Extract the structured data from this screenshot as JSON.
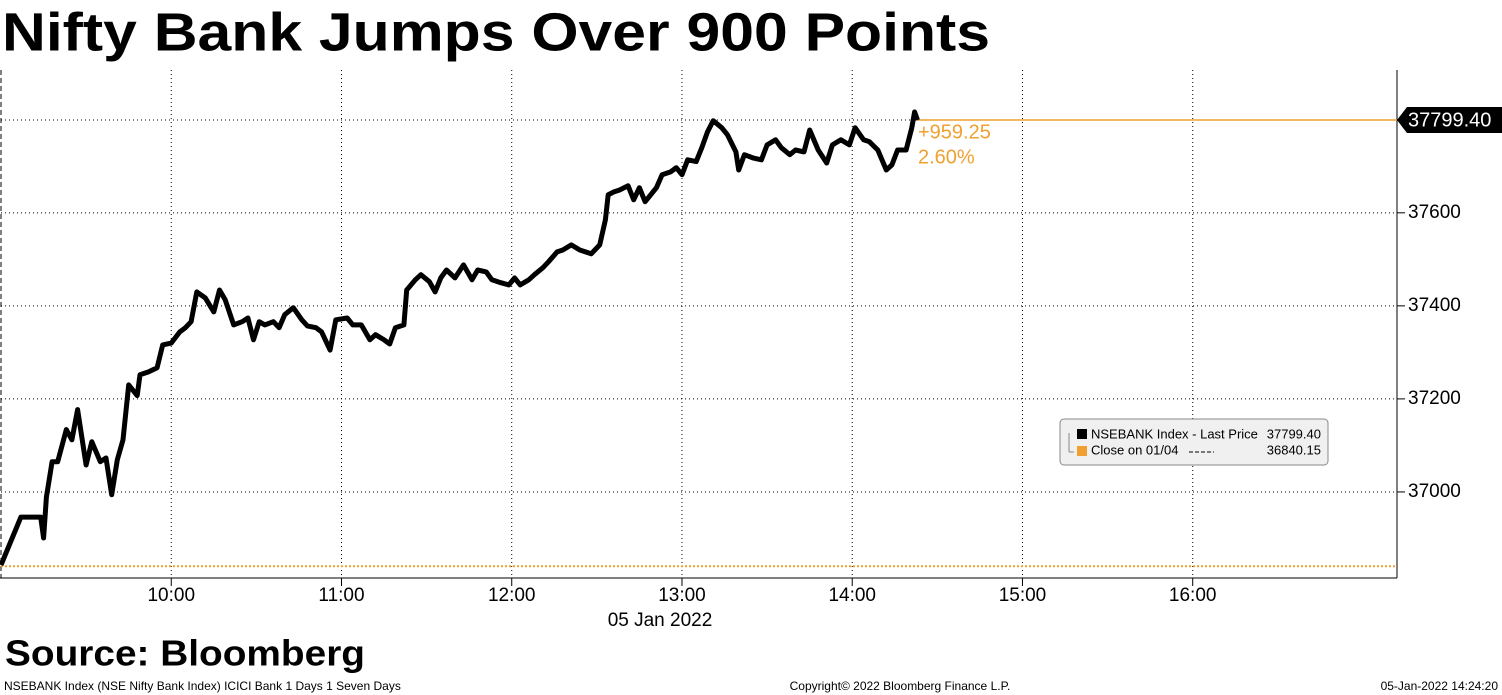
{
  "chart_data": {
    "type": "line",
    "title": "Nifty Bank Jumps Over 900 Points",
    "source": "Source: Bloomberg",
    "x_label": "05 Jan 2022",
    "footer_left": "NSEBANK Index (NSE Nifty Bank Index) ICICI Bank 1 Days 1 Seven Days",
    "footer_center": "Copyright© 2022 Bloomberg Finance L.P.",
    "footer_right": "05-Jan-2022 14:24:20",
    "x": [
      "09:00",
      "09:07",
      "09:14",
      "09:15",
      "09:16",
      "09:18",
      "09:20",
      "09:23",
      "09:25",
      "09:27",
      "09:30",
      "09:32",
      "09:35",
      "09:37",
      "09:39",
      "09:41",
      "09:43",
      "09:45",
      "09:48",
      "09:49",
      "09:52",
      "09:55",
      "09:57",
      "10:00",
      "10:03",
      "10:05",
      "10:07",
      "10:09",
      "10:12",
      "10:15",
      "10:17",
      "10:19",
      "10:22",
      "10:25",
      "10:27",
      "10:29",
      "10:31",
      "10:33",
      "10:36",
      "10:38",
      "10:40",
      "10:43",
      "10:46",
      "10:48",
      "10:51",
      "10:53",
      "10:56",
      "10:58",
      "11:02",
      "11:04",
      "11:07",
      "11:10",
      "11:12",
      "11:15",
      "11:17",
      "11:19",
      "11:22",
      "11:23",
      "11:26",
      "11:28",
      "11:31",
      "11:33",
      "11:35",
      "11:37",
      "11:40",
      "11:43",
      "11:46",
      "11:48",
      "11:51",
      "11:53",
      "11:56",
      "11:59",
      "12:01",
      "12:03",
      "12:06",
      "12:08",
      "12:11",
      "12:13",
      "12:16",
      "12:18",
      "12:21",
      "12:24",
      "12:26",
      "12:28",
      "12:31",
      "12:33",
      "12:34",
      "12:36",
      "12:38",
      "12:41",
      "12:43",
      "12:45",
      "12:47",
      "12:49",
      "12:51",
      "12:53",
      "12:56",
      "12:58",
      "13:00",
      "13:02",
      "13:05",
      "13:07",
      "13:09",
      "13:11",
      "13:14",
      "13:16",
      "13:19",
      "13:20",
      "13:22",
      "13:25",
      "13:28",
      "13:30",
      "13:33",
      "13:35",
      "13:38",
      "13:40",
      "13:43",
      "13:45",
      "13:48",
      "13:51",
      "13:53",
      "13:56",
      "13:59",
      "14:01",
      "14:04",
      "14:06",
      "14:09",
      "14:12",
      "14:14",
      "14:16",
      "14:19",
      "14:21",
      "14:22",
      "14:23"
    ],
    "series": [
      {
        "name": "NSEBANK Index - Last Price",
        "color": "#000000",
        "values": [
          36843,
          36946,
          36946,
          36901,
          36989,
          37065,
          37065,
          37134,
          37112,
          37177,
          37058,
          37108,
          37065,
          37073,
          36994,
          37069,
          37112,
          37230,
          37207,
          37252,
          37258,
          37267,
          37316,
          37320,
          37344,
          37353,
          37366,
          37430,
          37417,
          37387,
          37434,
          37413,
          37359,
          37366,
          37374,
          37327,
          37366,
          37359,
          37366,
          37353,
          37381,
          37396,
          37370,
          37357,
          37353,
          37344,
          37305,
          37370,
          37374,
          37359,
          37359,
          37327,
          37338,
          37327,
          37318,
          37353,
          37359,
          37434,
          37456,
          37467,
          37452,
          37430,
          37460,
          37477,
          37460,
          37488,
          37456,
          37477,
          37473,
          37456,
          37450,
          37445,
          37460,
          37445,
          37456,
          37467,
          37482,
          37495,
          37516,
          37520,
          37531,
          37520,
          37516,
          37512,
          37531,
          37585,
          37639,
          37645,
          37649,
          37658,
          37628,
          37654,
          37624,
          37639,
          37654,
          37682,
          37688,
          37697,
          37682,
          37714,
          37710,
          37740,
          37774,
          37798,
          37783,
          37768,
          37731,
          37692,
          37725,
          37718,
          37714,
          37746,
          37757,
          37740,
          37725,
          37735,
          37731,
          37778,
          37735,
          37707,
          37746,
          37757,
          37746,
          37783,
          37757,
          37753,
          37735,
          37692,
          37703,
          37735,
          37735,
          37783,
          37817,
          37799.4
        ]
      }
    ],
    "last_price": {
      "value": 37799.4,
      "label": "37799.40",
      "color": "#f0a030"
    },
    "close": {
      "name": "Close on 01/04",
      "value": 36840.15,
      "label": "36840.15",
      "color": "#f0a030"
    },
    "change": {
      "value": 959.25,
      "label": "+959.25"
    },
    "change_pct": {
      "value": 2.6,
      "label": "2.60%"
    },
    "annotation_color": "#f0a030",
    "xlim": [
      "09:00",
      "17:12"
    ],
    "xticks": [
      "10:00",
      "11:00",
      "12:00",
      "13:00",
      "14:00",
      "15:00",
      "16:00"
    ],
    "ylim": [
      36815,
      37907
    ],
    "yticks": [
      37000,
      37200,
      37400,
      37600
    ],
    "grid": true
  }
}
